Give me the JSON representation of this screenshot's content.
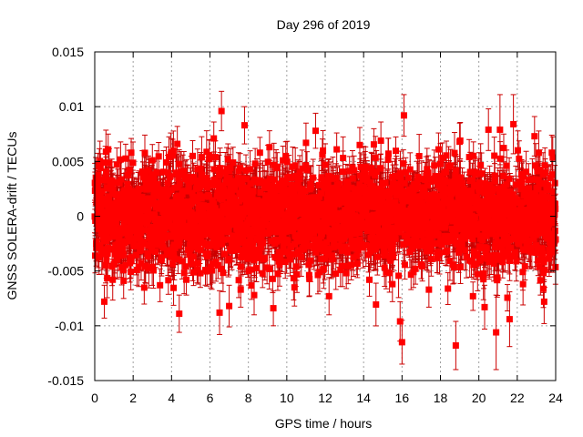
{
  "chart_data": {
    "type": "scatter",
    "title": "Day 296 of 2019",
    "xlabel": "GPS time / hours",
    "ylabel": "GNSS SOLERA-drift / TECUs",
    "xlim": [
      0,
      24
    ],
    "ylim": [
      -0.015,
      0.015
    ],
    "xticks": [
      0,
      2,
      4,
      6,
      8,
      10,
      12,
      14,
      16,
      18,
      20,
      22,
      24
    ],
    "xtick_labels": [
      "0",
      "2",
      "4",
      "6",
      "8",
      "10",
      "12",
      "14",
      "16",
      "18",
      "20",
      "22",
      "24"
    ],
    "yticks": [
      -0.015,
      -0.01,
      -0.005,
      0,
      0.005,
      0.01,
      0.015
    ],
    "ytick_labels": [
      "-0.015",
      "-0.01",
      "-0.005",
      "0",
      "0.005",
      "0.01",
      "0.015"
    ],
    "grid": true,
    "marker_color": "#ff0000",
    "errorbar_color": "#cc0000",
    "series": [
      {
        "marker": "square",
        "x": [
          0.5,
          0.7,
          1.2,
          1.9,
          2.2,
          2.8,
          3.4,
          4.3,
          4.4,
          5.1,
          5.5,
          6.2,
          6.5,
          6.6,
          7.0,
          7.2,
          7.6,
          7.8,
          8.3,
          8.6,
          9.1,
          9.3,
          9.8,
          10.4,
          11.0,
          11.5,
          12.2,
          12.6,
          13.1,
          13.8,
          14.3,
          14.9,
          15.5,
          15.9,
          16.0,
          16.1,
          16.7,
          17.4,
          17.9,
          18.8,
          19.0,
          19.5,
          20.3,
          20.5,
          20.9,
          21.1,
          21.6,
          21.8,
          22.3,
          22.9,
          23.4,
          23.8,
          0.3,
          1.5,
          3.0,
          5.0,
          9.5,
          11.8,
          13.5,
          17.0
        ],
        "y": [
          -0.0078,
          0.0061,
          0.0031,
          0.0058,
          -0.0049,
          0.0042,
          -0.0063,
          0.0066,
          -0.0089,
          0.0055,
          -0.0052,
          0.0071,
          -0.0088,
          0.0096,
          -0.0082,
          0.0049,
          -0.0067,
          0.0083,
          -0.0072,
          0.0058,
          0.0063,
          -0.0084,
          0.0051,
          -0.0065,
          0.0067,
          0.0078,
          -0.0073,
          0.0061,
          -0.0052,
          0.0065,
          -0.0058,
          0.0069,
          -0.0062,
          -0.0096,
          -0.0115,
          0.0092,
          -0.0048,
          -0.0067,
          0.0061,
          -0.0118,
          0.0068,
          0.0054,
          -0.0083,
          0.0079,
          -0.0106,
          0.0079,
          -0.0094,
          0.0084,
          -0.0062,
          0.0073,
          -0.0078,
          0.0058,
          0.0044,
          -0.0049,
          0.0038,
          -0.0041,
          0.0045,
          -0.0039,
          0.0042,
          -0.0044
        ],
        "err": [
          0.0015,
          0.0014,
          0.0012,
          0.0013,
          0.0014,
          0.0013,
          0.0015,
          0.0016,
          0.0017,
          0.0014,
          0.0013,
          0.0015,
          0.002,
          0.0018,
          0.0019,
          0.0014,
          0.0016,
          0.0017,
          0.0018,
          0.0014,
          0.0015,
          0.0016,
          0.0013,
          0.0017,
          0.0018,
          0.0016,
          0.0017,
          0.0015,
          0.0014,
          0.0016,
          0.0015,
          0.0017,
          0.0016,
          0.0018,
          0.002,
          0.0019,
          0.0014,
          0.0016,
          0.0015,
          0.0022,
          0.0017,
          0.0016,
          0.002,
          0.0019,
          0.0034,
          0.0032,
          0.0025,
          0.0027,
          0.0019,
          0.0018,
          0.002,
          0.0016,
          0.0013,
          0.0012,
          0.0012,
          0.0013,
          0.0013,
          0.0012,
          0.0013,
          0.0013
        ],
        "bulk": {
          "count": 3000,
          "x_range": [
            0.0,
            24.0
          ],
          "center": 0.0,
          "spread_sd": 0.0022,
          "err_mean": 0.0016
        }
      }
    ]
  }
}
